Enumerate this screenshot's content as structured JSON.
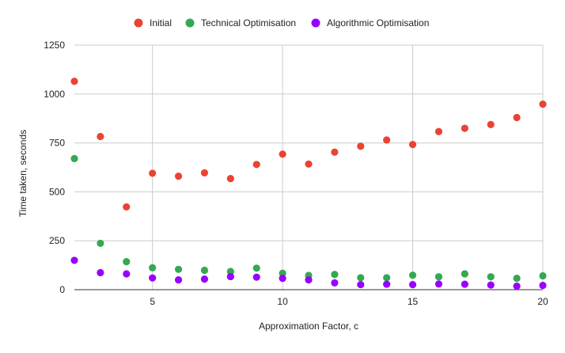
{
  "chart_data": {
    "type": "scatter",
    "title": "",
    "xlabel": "Approximation Factor, c",
    "ylabel": "Time taken, seconds",
    "xlim": [
      2,
      20
    ],
    "ylim": [
      0,
      1250
    ],
    "x_ticks": [
      5,
      10,
      15,
      20
    ],
    "y_ticks": [
      0,
      250,
      500,
      750,
      1000,
      1250
    ],
    "grid": true,
    "legend_position": "top",
    "x": [
      2,
      3,
      4,
      5,
      6,
      7,
      8,
      9,
      10,
      11,
      12,
      13,
      14,
      15,
      16,
      17,
      18,
      19,
      20
    ],
    "series": [
      {
        "name": "Initial",
        "color": "#ea4335",
        "values": [
          1065,
          783,
          423,
          595,
          580,
          597,
          568,
          640,
          693,
          642,
          703,
          733,
          765,
          742,
          808,
          825,
          844,
          880,
          948
        ]
      },
      {
        "name": "Technical Optimisation",
        "color": "#34a853",
        "values": [
          670,
          237,
          143,
          112,
          104,
          99,
          93,
          110,
          84,
          73,
          78,
          61,
          61,
          74,
          66,
          81,
          66,
          58,
          71
        ]
      },
      {
        "name": "Algorithmic Optimisation",
        "color": "#9900ff",
        "values": [
          150,
          87,
          81,
          60,
          50,
          54,
          67,
          64,
          58,
          50,
          35,
          26,
          28,
          26,
          29,
          28,
          24,
          18,
          22
        ]
      }
    ]
  }
}
